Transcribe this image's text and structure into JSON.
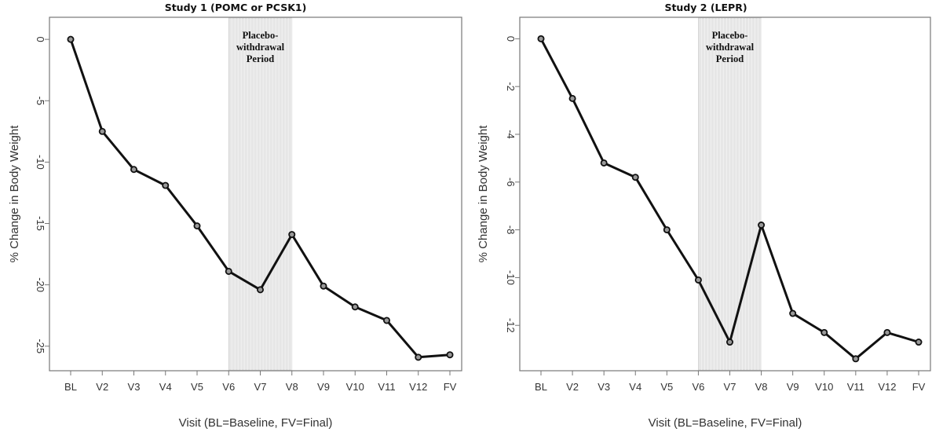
{
  "chart_data": [
    {
      "type": "line",
      "title": "Study 1 (POMC or PCSK1)",
      "xlabel": "Visit (BL=Baseline, FV=Final)",
      "ylabel": "% Change in Body Weight",
      "categories": [
        "BL",
        "V2",
        "V3",
        "V4",
        "V5",
        "V6",
        "V7",
        "V8",
        "V9",
        "V10",
        "V11",
        "V12",
        "FV"
      ],
      "series": [
        {
          "values": [
            0,
            -7.5,
            -10.6,
            -11.9,
            -15.2,
            -18.9,
            -20.4,
            -15.9,
            -20.1,
            -21.8,
            -22.9,
            -25.9,
            -25.7
          ]
        }
      ],
      "ylim": [
        -27,
        1.8
      ],
      "yticks": [
        0,
        -5,
        -10,
        -15,
        -20,
        -25
      ],
      "ytick_labels": [
        "0",
        "-5",
        "-10",
        "-15",
        "-20",
        "-25"
      ],
      "shaded_region": {
        "from": "V6",
        "to": "V8",
        "label_lines": [
          "Placebo-",
          "withdrawal",
          "Period"
        ]
      },
      "grid": false,
      "legend": "none",
      "colors": {
        "line": "#111111",
        "marker_fill": "#999999",
        "shade": "#e6e6e6",
        "frame": "#777777"
      }
    },
    {
      "type": "line",
      "title": "Study 2 (LEPR)",
      "xlabel": "Visit (BL=Baseline, FV=Final)",
      "ylabel": "% Change in Body Weight",
      "categories": [
        "BL",
        "V2",
        "V3",
        "V4",
        "V5",
        "V6",
        "V7",
        "V8",
        "V9",
        "V10",
        "V11",
        "V12",
        "FV"
      ],
      "series": [
        {
          "values": [
            0,
            -2.5,
            -5.2,
            -5.8,
            -8.0,
            -10.1,
            -12.7,
            -7.8,
            -11.5,
            -12.3,
            -13.4,
            -12.3,
            -12.7
          ]
        }
      ],
      "ylim": [
        -13.9,
        0.9
      ],
      "yticks": [
        0,
        -2,
        -4,
        -6,
        -8,
        -10,
        -12
      ],
      "ytick_labels": [
        "0",
        "-2",
        "-4",
        "-6",
        "-8",
        "-10",
        "-12"
      ],
      "shaded_region": {
        "from": "V6",
        "to": "V8",
        "label_lines": [
          "Placebo-",
          "withdrawal",
          "Period"
        ]
      },
      "grid": false,
      "legend": "none",
      "colors": {
        "line": "#111111",
        "marker_fill": "#999999",
        "shade": "#e6e6e6",
        "frame": "#777777"
      }
    }
  ]
}
